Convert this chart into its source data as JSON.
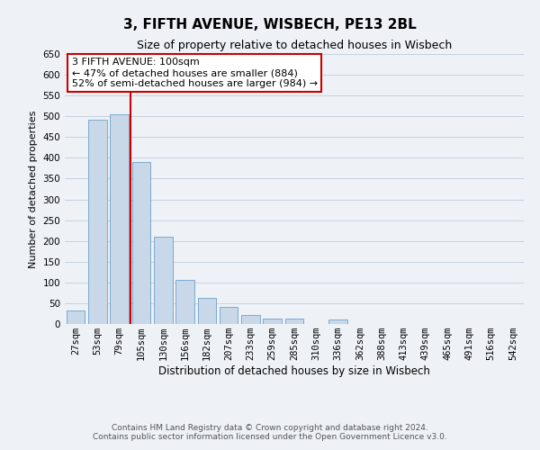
{
  "title": "3, FIFTH AVENUE, WISBECH, PE13 2BL",
  "subtitle": "Size of property relative to detached houses in Wisbech",
  "xlabel": "Distribution of detached houses by size in Wisbech",
  "ylabel": "Number of detached properties",
  "bar_labels": [
    "27sqm",
    "53sqm",
    "79sqm",
    "105sqm",
    "130sqm",
    "156sqm",
    "182sqm",
    "207sqm",
    "233sqm",
    "259sqm",
    "285sqm",
    "310sqm",
    "336sqm",
    "362sqm",
    "388sqm",
    "413sqm",
    "439sqm",
    "465sqm",
    "491sqm",
    "516sqm",
    "542sqm"
  ],
  "bar_values": [
    33,
    492,
    505,
    390,
    210,
    107,
    62,
    41,
    22,
    14,
    13,
    0,
    11,
    0,
    0,
    0,
    0,
    0,
    0,
    1,
    1
  ],
  "bar_color": "#c8d8e8",
  "bar_edgecolor": "#7aabcf",
  "ylim": [
    0,
    650
  ],
  "yticks": [
    0,
    50,
    100,
    150,
    200,
    250,
    300,
    350,
    400,
    450,
    500,
    550,
    600,
    650
  ],
  "vline_color": "#cc0000",
  "annotation_title": "3 FIFTH AVENUE: 100sqm",
  "annotation_line1": "← 47% of detached houses are smaller (884)",
  "annotation_line2": "52% of semi-detached houses are larger (984) →",
  "annotation_box_color": "#ffffff",
  "annotation_box_edgecolor": "#cc0000",
  "footer_line1": "Contains HM Land Registry data © Crown copyright and database right 2024.",
  "footer_line2": "Contains public sector information licensed under the Open Government Licence v3.0.",
  "background_color": "#eef2f7",
  "grid_color": "#c5d0e0",
  "title_fontsize": 11,
  "subtitle_fontsize": 9,
  "xlabel_fontsize": 8.5,
  "ylabel_fontsize": 8,
  "tick_fontsize": 7.5,
  "footer_fontsize": 6.5,
  "annotation_fontsize": 8
}
